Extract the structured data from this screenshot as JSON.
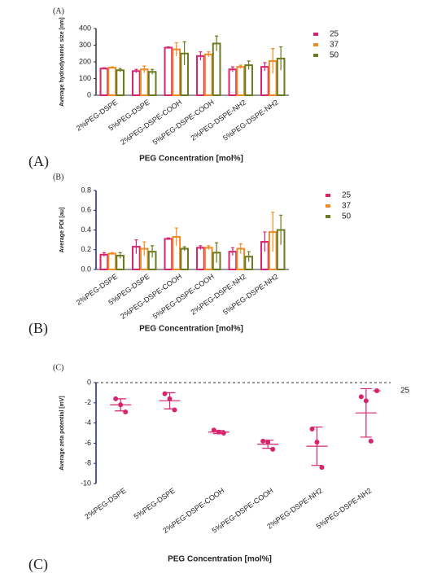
{
  "chart_data": [
    {
      "type": "bar",
      "panel_label": "(A)",
      "figure_label": "(A)",
      "x_label": "PEG Concentration [mol%]",
      "y_label": "Average hydrodynamic size [nm]",
      "categories": [
        "2%PEG-DSPE",
        "5%PEG-DSPE",
        "2%PEG-DSPE-COOH",
        "5%PEG-DSPE-COOH",
        "2%PEG-DSPE-NH2",
        "5%PEG-DSPE-NH2"
      ],
      "series": [
        {
          "name": "25",
          "color": "#d6246e",
          "values": [
            160,
            145,
            285,
            235,
            155,
            170
          ],
          "errors": [
            5,
            10,
            5,
            25,
            15,
            25
          ]
        },
        {
          "name": "37",
          "color": "#f08a24",
          "values": [
            165,
            155,
            275,
            245,
            170,
            205
          ],
          "errors": [
            5,
            20,
            40,
            15,
            10,
            75
          ]
        },
        {
          "name": "50",
          "color": "#6b7a1e",
          "values": [
            150,
            140,
            250,
            310,
            180,
            220
          ],
          "errors": [
            10,
            15,
            70,
            45,
            25,
            70
          ]
        }
      ],
      "ylim": [
        0,
        400
      ],
      "yticks": [
        0,
        100,
        200,
        300,
        400
      ]
    },
    {
      "type": "bar",
      "panel_label": "(B)",
      "figure_label": "(B)",
      "x_label": "PEG Concentration [mol%]",
      "y_label": "Average PDI [au]",
      "categories": [
        "2%PEG-DSPE",
        "5%PEG-DSPE",
        "2%PEG-DSPE-COOH",
        "5%PEG-DSPE-COOH",
        "2%PEG-DSPE-NH2",
        "5%PEG-DSPE-NH2"
      ],
      "series": [
        {
          "name": "25",
          "color": "#d6246e",
          "values": [
            0.15,
            0.23,
            0.31,
            0.22,
            0.18,
            0.28
          ],
          "errors": [
            0.02,
            0.07,
            0.01,
            0.02,
            0.04,
            0.1
          ]
        },
        {
          "name": "37",
          "color": "#f08a24",
          "values": [
            0.16,
            0.21,
            0.33,
            0.22,
            0.21,
            0.38
          ],
          "errors": [
            0.01,
            0.07,
            0.09,
            0.02,
            0.05,
            0.2
          ]
        },
        {
          "name": "50",
          "color": "#6b7a1e",
          "values": [
            0.14,
            0.18,
            0.21,
            0.17,
            0.13,
            0.4
          ],
          "errors": [
            0.03,
            0.06,
            0.02,
            0.1,
            0.05,
            0.15
          ]
        }
      ],
      "ylim": [
        0,
        0.8
      ],
      "yticks": [
        {
          "value": 0,
          "label": "0.0"
        },
        0.2,
        0.4,
        0.6,
        0.8
      ]
    },
    {
      "type": "scatter",
      "panel_label": "(C)",
      "figure_label": "(C)",
      "x_label": "PEG Concentration [mol%]",
      "y_label": "Average zeta potential [mV]",
      "categories": [
        "2%PEG-DSPE",
        "5%PEG-DSPE",
        "2%PEG-DSPE-COOH",
        "5%PEG-DSPE-COOH",
        "2%PEG-DSPE-NH2",
        "5%PEG-DSPE-NH2"
      ],
      "series": [
        {
          "name": "25",
          "color": "#d6246e",
          "values": [
            [
              -1.6,
              -2.2,
              -2.9
            ],
            [
              -1.1,
              -1.6,
              -2.7
            ],
            [
              -4.7,
              -4.9,
              -5.0
            ],
            [
              -5.8,
              -5.9,
              -6.6
            ],
            [
              -4.6,
              -5.9,
              -8.4
            ],
            [
              -1.4,
              -1.8,
              -5.8
            ]
          ],
          "means": [
            -2.2,
            -1.8,
            -4.9,
            -6.1,
            -6.3,
            -3.0
          ],
          "errors": [
            0.6,
            0.8,
            0.15,
            0.4,
            1.9,
            2.4
          ]
        }
      ],
      "ylim": [
        -10,
        0
      ],
      "yticks": [
        0,
        -2,
        -4,
        -6,
        -8,
        -10
      ],
      "zero_line": true
    }
  ]
}
